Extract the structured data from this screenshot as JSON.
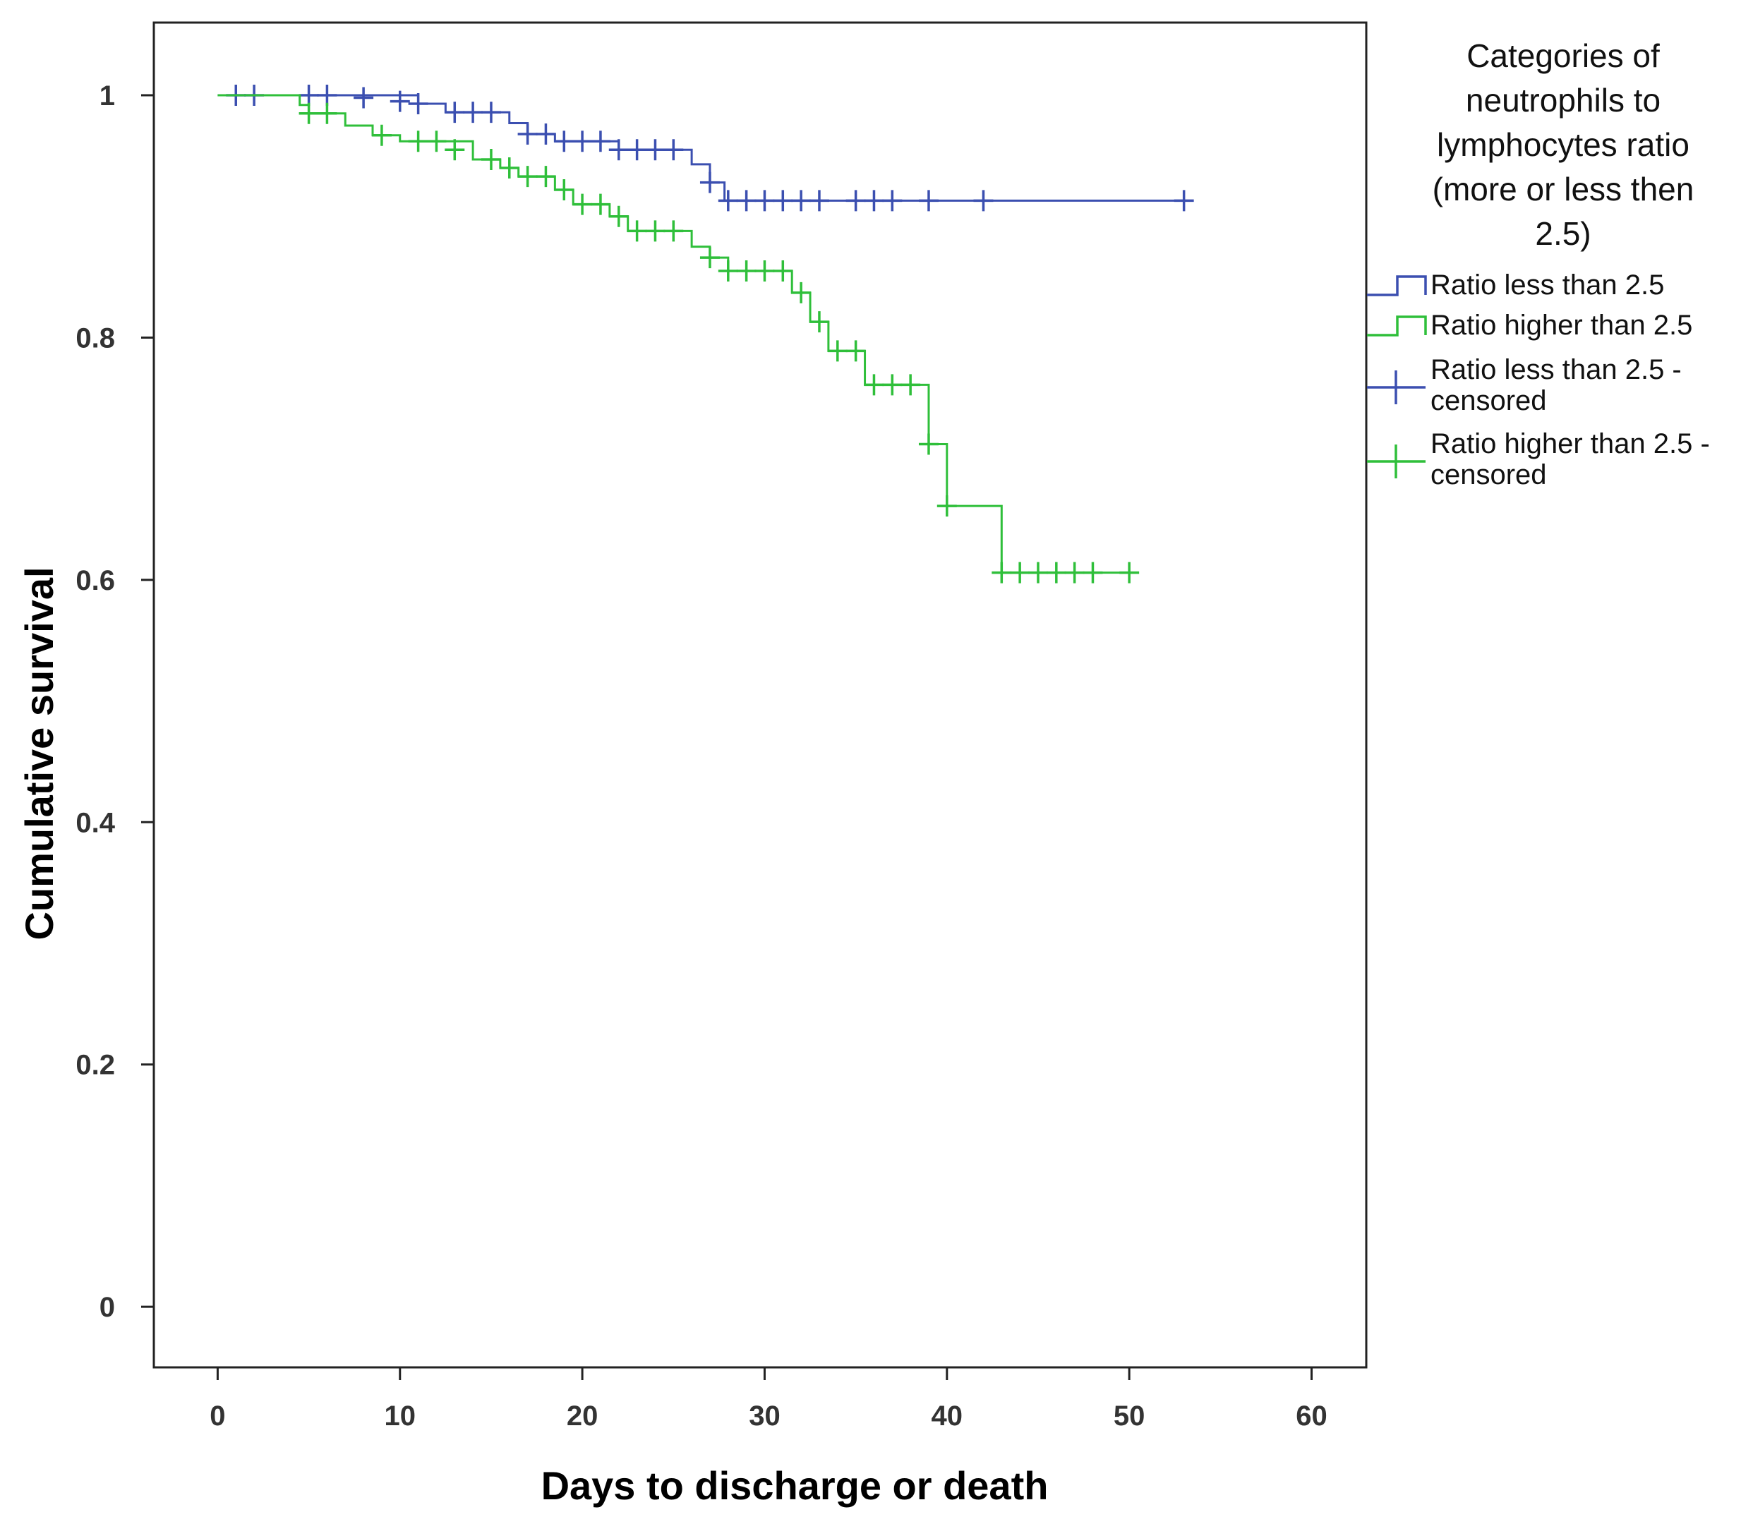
{
  "chart_data": {
    "type": "line",
    "subtype": "kaplan-meier",
    "xlabel": "Days to discharge or death",
    "ylabel": "Cumulative survival",
    "xlim": [
      -3.5,
      63
    ],
    "ylim": [
      -0.05,
      1.06
    ],
    "x_ticks": [
      0,
      10,
      20,
      30,
      40,
      50,
      60
    ],
    "x_tick_labels": [
      "0",
      "10",
      "20",
      "30",
      "40",
      "50",
      "60"
    ],
    "y_ticks": [
      0,
      0.2,
      0.4,
      0.6,
      0.8,
      1
    ],
    "y_tick_labels": [
      "0",
      "0.2",
      "0.4",
      "0.6",
      "0.8",
      "1"
    ],
    "legend": {
      "title_lines": [
        "Categories of",
        "neutrophils to",
        "lymphocytes ratio",
        "(more or less then",
        "2.5)"
      ],
      "position": "right",
      "entries": [
        {
          "kind": "step",
          "series": 0,
          "lines": [
            "Ratio less than 2.5"
          ]
        },
        {
          "kind": "step",
          "series": 1,
          "lines": [
            "Ratio higher than 2.5"
          ]
        },
        {
          "kind": "censor",
          "series": 0,
          "lines": [
            "Ratio less than 2.5 -",
            "censored"
          ]
        },
        {
          "kind": "censor",
          "series": 1,
          "lines": [
            "Ratio higher than 2.5 -",
            "censored"
          ]
        }
      ]
    },
    "series": [
      {
        "name": "Ratio less than 2.5",
        "color": "#3b4fb0",
        "steps": [
          [
            0,
            1.0
          ],
          [
            11,
            0.993
          ],
          [
            12.5,
            0.986
          ],
          [
            16,
            0.977
          ],
          [
            17,
            0.968
          ],
          [
            18.5,
            0.962
          ],
          [
            22,
            0.955
          ],
          [
            26,
            0.943
          ],
          [
            27,
            0.928
          ],
          [
            27.8,
            0.913
          ],
          [
            53,
            0.913
          ]
        ],
        "censored": [
          [
            1,
            1.0
          ],
          [
            2,
            1.0
          ],
          [
            5,
            1.0
          ],
          [
            6,
            1.0
          ],
          [
            8,
            0.998
          ],
          [
            10,
            0.995
          ],
          [
            11,
            0.993
          ],
          [
            13,
            0.986
          ],
          [
            14,
            0.986
          ],
          [
            15,
            0.986
          ],
          [
            17,
            0.968
          ],
          [
            18,
            0.968
          ],
          [
            19,
            0.962
          ],
          [
            20,
            0.962
          ],
          [
            21,
            0.962
          ],
          [
            22,
            0.955
          ],
          [
            23,
            0.955
          ],
          [
            24,
            0.955
          ],
          [
            25,
            0.955
          ],
          [
            27,
            0.928
          ],
          [
            28,
            0.913
          ],
          [
            29,
            0.913
          ],
          [
            30,
            0.913
          ],
          [
            31,
            0.913
          ],
          [
            32,
            0.913
          ],
          [
            33,
            0.913
          ],
          [
            35,
            0.913
          ],
          [
            36,
            0.913
          ],
          [
            37,
            0.913
          ],
          [
            39,
            0.913
          ],
          [
            42,
            0.913
          ],
          [
            53,
            0.913
          ]
        ]
      },
      {
        "name": "Ratio higher than 2.5",
        "color": "#2fbf3a",
        "steps": [
          [
            0,
            1.0
          ],
          [
            4.5,
            0.992
          ],
          [
            5,
            0.985
          ],
          [
            7,
            0.975
          ],
          [
            8.5,
            0.967
          ],
          [
            10,
            0.962
          ],
          [
            14,
            0.947
          ],
          [
            15.5,
            0.94
          ],
          [
            16.5,
            0.933
          ],
          [
            18.5,
            0.922
          ],
          [
            19.5,
            0.91
          ],
          [
            21.5,
            0.9
          ],
          [
            22.5,
            0.888
          ],
          [
            26,
            0.875
          ],
          [
            27,
            0.866
          ],
          [
            28,
            0.855
          ],
          [
            31.5,
            0.837
          ],
          [
            32.5,
            0.813
          ],
          [
            33.5,
            0.789
          ],
          [
            35.5,
            0.761
          ],
          [
            39,
            0.712
          ],
          [
            40,
            0.661
          ],
          [
            43,
            0.606
          ],
          [
            50,
            0.606
          ]
        ],
        "censored": [
          [
            5,
            0.985
          ],
          [
            6,
            0.985
          ],
          [
            9,
            0.967
          ],
          [
            11,
            0.962
          ],
          [
            12,
            0.962
          ],
          [
            13,
            0.955
          ],
          [
            15,
            0.947
          ],
          [
            16,
            0.94
          ],
          [
            17,
            0.933
          ],
          [
            18,
            0.933
          ],
          [
            19,
            0.922
          ],
          [
            20,
            0.91
          ],
          [
            21,
            0.91
          ],
          [
            22,
            0.9
          ],
          [
            23,
            0.888
          ],
          [
            24,
            0.888
          ],
          [
            25,
            0.888
          ],
          [
            27,
            0.866
          ],
          [
            28,
            0.855
          ],
          [
            29,
            0.855
          ],
          [
            30,
            0.855
          ],
          [
            31,
            0.855
          ],
          [
            32,
            0.837
          ],
          [
            33,
            0.813
          ],
          [
            34,
            0.789
          ],
          [
            35,
            0.789
          ],
          [
            36,
            0.761
          ],
          [
            37,
            0.761
          ],
          [
            38,
            0.761
          ],
          [
            39,
            0.712
          ],
          [
            40,
            0.661
          ],
          [
            43,
            0.606
          ],
          [
            44,
            0.606
          ],
          [
            45,
            0.606
          ],
          [
            46,
            0.606
          ],
          [
            47,
            0.606
          ],
          [
            48,
            0.606
          ],
          [
            50,
            0.606
          ]
        ]
      }
    ]
  }
}
